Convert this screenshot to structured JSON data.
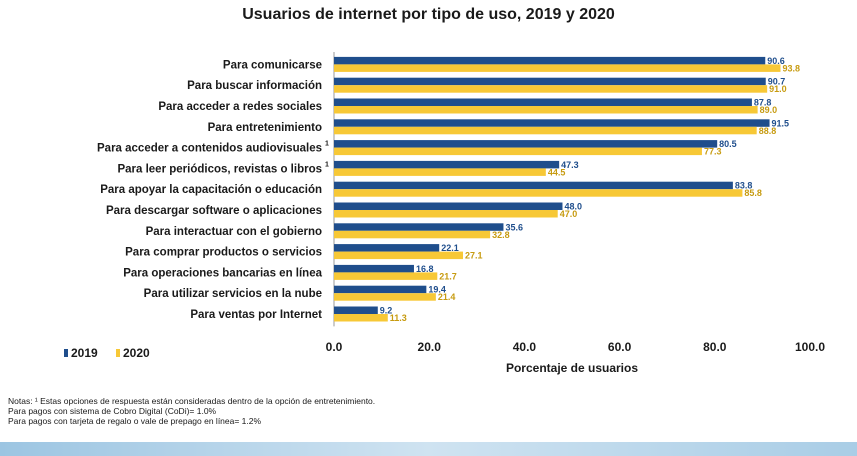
{
  "chart_data": {
    "type": "bar",
    "orientation": "horizontal",
    "title": "Usuarios de internet por tipo de uso, 2019 y 2020",
    "xlabel": "Porcentaje de usuarios",
    "xlim": [
      0,
      100
    ],
    "xticks": [
      "0.0",
      "20.0",
      "40.0",
      "60.0",
      "80.0",
      "100.0"
    ],
    "xtick_values": [
      0,
      20,
      40,
      60,
      80,
      100
    ],
    "grid": false,
    "legend_position": "bottom-left",
    "categories": [
      "Para comunicarse",
      "Para buscar información",
      "Para acceder a redes sociales",
      "Para entretenimiento",
      "Para acceder a contenidos audiovisuales",
      "Para leer periódicos, revistas o libros",
      "Para apoyar la capacitación o educación",
      "Para descargar software o aplicaciones",
      "Para interactuar con el gobierno",
      "Para comprar productos o servicios",
      "Para operaciones bancarias en línea",
      "Para utilizar servicios en la nube",
      "Para ventas por Internet"
    ],
    "category_superscripts": [
      "",
      "",
      "",
      "",
      "1",
      "1",
      "",
      "",
      "",
      "",
      "",
      "",
      ""
    ],
    "series": [
      {
        "name": "2019",
        "color": "#1f4e8c",
        "values": [
          90.6,
          90.7,
          87.8,
          91.5,
          80.5,
          47.3,
          83.8,
          48.0,
          35.6,
          22.1,
          16.8,
          19.4,
          9.2
        ],
        "labels": [
          "90.6",
          "90.7",
          "87.8",
          "91.5",
          "80.5",
          "47.3",
          "83.8",
          "48.0",
          "35.6",
          "22.1",
          "16.8",
          "19.4",
          "9.2"
        ]
      },
      {
        "name": "2020",
        "color": "#f7c836",
        "values": [
          93.8,
          91.0,
          89.0,
          88.8,
          77.3,
          44.5,
          85.8,
          47.0,
          32.8,
          27.1,
          21.7,
          21.4,
          11.3
        ],
        "labels": [
          "93.8",
          "91.0",
          "89.0",
          "88.8",
          "77.3",
          "44.5",
          "85.8",
          "47.0",
          "32.8",
          "27.1",
          "21.7",
          "21.4",
          "11.3"
        ]
      }
    ]
  },
  "notes": {
    "line1": "Notas: ¹ Estas opciones de respuesta están consideradas dentro de la opción de entretenimiento.",
    "line2": "Para pagos con sistema de Cobro Digital (CoDi)= 1.0%",
    "line3": "Para pagos con tarjeta de regalo o vale de prepago en línea= 1.2%"
  }
}
